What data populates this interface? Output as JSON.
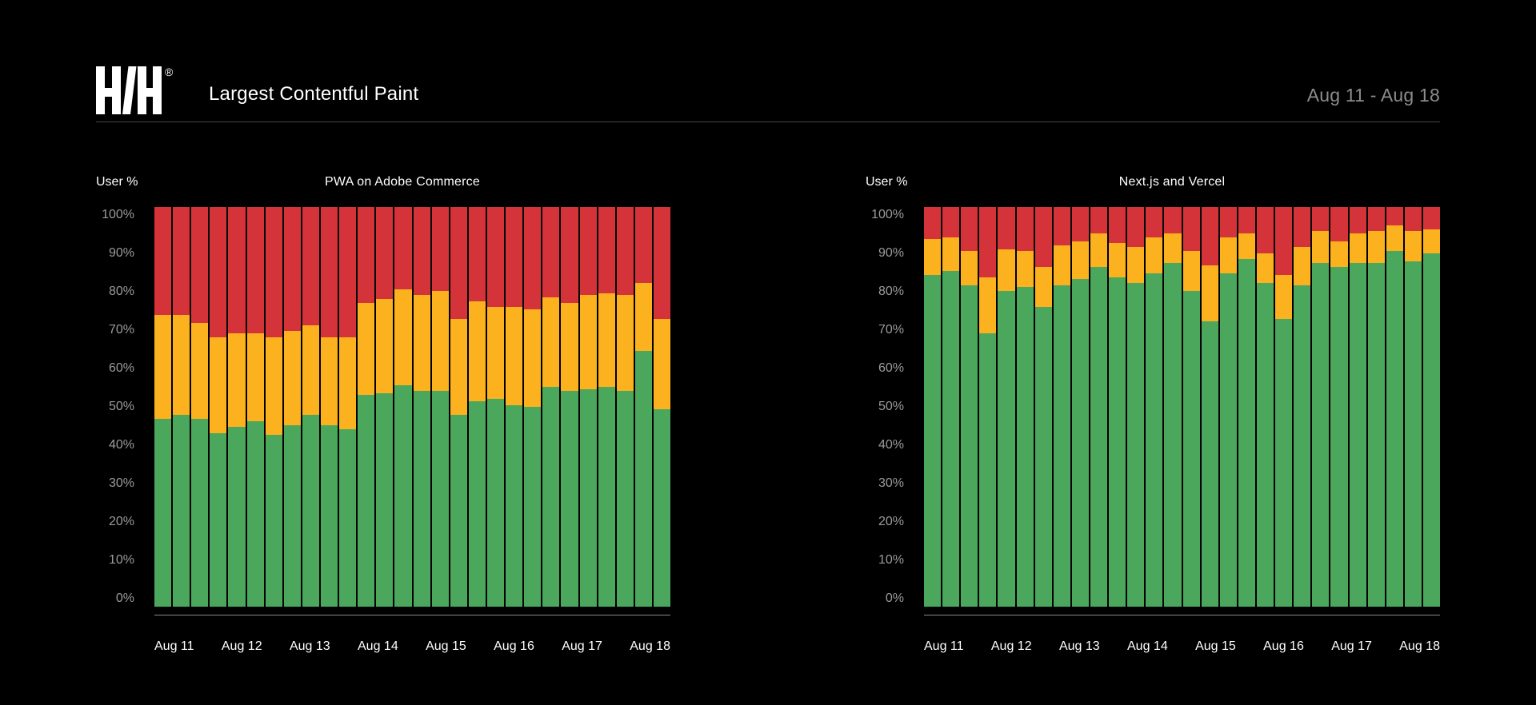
{
  "header": {
    "logo_text": "H/H",
    "registered_mark": "®",
    "title": "Largest Contentful Paint",
    "date_range": "Aug 11 - Aug 18"
  },
  "colors": {
    "background": "#000000",
    "good": "#4AA75C",
    "needs_improvement": "#FCB11F",
    "poor": "#D4333A",
    "text_primary": "#FFFFFF",
    "text_muted": "#8C8C8C",
    "y_tick_text": "#9B9B9B",
    "header_divider": "#454545",
    "axis_line": "#8A8A8A"
  },
  "chart_data": [
    {
      "type": "bar",
      "stacked": true,
      "normalized_to_100": true,
      "title": "PWA on Adobe Commerce",
      "ylabel": "User %",
      "ylim": [
        0,
        100
      ],
      "grid": false,
      "legend": "none",
      "bars_per_day": 4,
      "y_tick_labels": [
        "100%",
        "90%",
        "80%",
        "70%",
        "60%",
        "50%",
        "40%",
        "30%",
        "20%",
        "10%",
        "0%"
      ],
      "x_tick_labels": [
        "Aug 11",
        "Aug 12",
        "Aug 13",
        "Aug 14",
        "Aug 15",
        "Aug 16",
        "Aug 17",
        "Aug 18"
      ],
      "series": [
        {
          "name": "good",
          "color": "#4AA75C",
          "values": [
            47,
            48,
            47,
            43.5,
            45,
            46.5,
            43,
            45.5,
            48,
            45.5,
            44.5,
            53,
            53.5,
            55.5,
            54,
            54,
            48,
            51.5,
            52,
            50.5,
            50,
            55,
            54,
            54.5,
            55,
            54,
            64,
            49.5
          ]
        },
        {
          "name": "needs_improvement",
          "color": "#FCB11F",
          "values": [
            26,
            25,
            24,
            24,
            23.5,
            22,
            24.5,
            23.5,
            22.5,
            22,
            23,
            23,
            23.5,
            24,
            24,
            25,
            24,
            25,
            23,
            24.5,
            24.5,
            22.5,
            22,
            23.5,
            23.5,
            24,
            17,
            22.5
          ]
        },
        {
          "name": "poor",
          "color": "#D4333A",
          "values": [
            27,
            27,
            29,
            32.5,
            31.5,
            31.5,
            32.5,
            31,
            29.5,
            32.5,
            32.5,
            24,
            23,
            20.5,
            22,
            21,
            28,
            23.5,
            25,
            25,
            25.5,
            22.5,
            24,
            22,
            21.5,
            22,
            19,
            28
          ]
        }
      ]
    },
    {
      "type": "bar",
      "stacked": true,
      "normalized_to_100": true,
      "title": "Next.js and Vercel",
      "ylabel": "User %",
      "ylim": [
        0,
        100
      ],
      "grid": false,
      "legend": "none",
      "bars_per_day": 4,
      "y_tick_labels": [
        "100%",
        "90%",
        "80%",
        "70%",
        "60%",
        "50%",
        "40%",
        "30%",
        "20%",
        "10%",
        "0%"
      ],
      "x_tick_labels": [
        "Aug 11",
        "Aug 12",
        "Aug 13",
        "Aug 14",
        "Aug 15",
        "Aug 16",
        "Aug 17",
        "Aug 18"
      ],
      "series": [
        {
          "name": "good",
          "color": "#4AA75C",
          "values": [
            83,
            84,
            80.5,
            68.5,
            79,
            80,
            75,
            80.5,
            82,
            85,
            82.5,
            81,
            83.5,
            86,
            79,
            71.5,
            83.5,
            87,
            81,
            72,
            80.5,
            86,
            85,
            86,
            86,
            89,
            86.5,
            88.5
          ]
        },
        {
          "name": "needs_improvement",
          "color": "#FCB11F",
          "values": [
            9,
            8.5,
            8.5,
            14,
            10.5,
            9,
            10,
            10,
            9.5,
            8.5,
            8.5,
            9,
            9,
            7.5,
            10,
            14,
            9,
            6.5,
            7.5,
            11,
            9.5,
            8,
            6.5,
            7.5,
            8,
            6.5,
            7.5,
            6
          ]
        },
        {
          "name": "poor",
          "color": "#D4333A",
          "values": [
            8,
            7.5,
            11,
            17.5,
            10.5,
            11,
            15,
            9.5,
            8.5,
            6.5,
            9,
            10,
            7.5,
            6.5,
            11,
            14.5,
            7.5,
            6.5,
            11.5,
            17,
            10,
            6,
            8.5,
            6.5,
            6,
            4.5,
            6,
            5.5
          ]
        }
      ]
    }
  ]
}
